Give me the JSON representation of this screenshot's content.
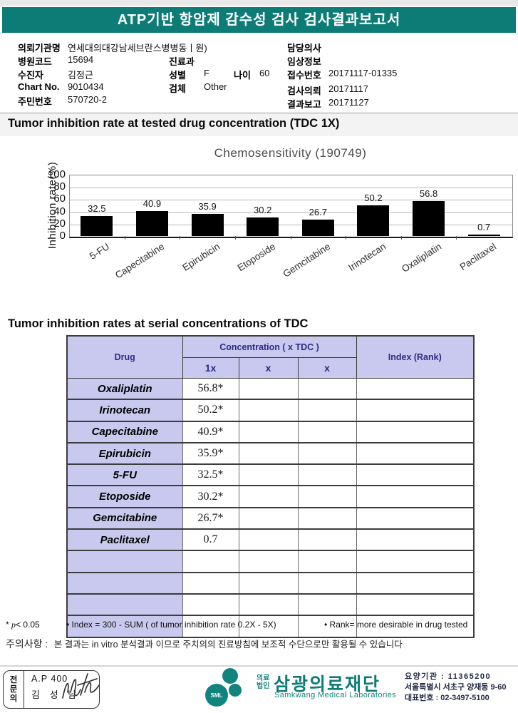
{
  "header": {
    "title": "ATP기반 항암제 감수성 검사 검사결과보고서",
    "bar_color": "#0d7c76"
  },
  "patient": {
    "org": {
      "label": "의뢰기관명",
      "value": "연세대의대강남세브란스병병동ㅣ원)"
    },
    "hospital_code": {
      "label": "병원코드",
      "value": "15694"
    },
    "patient_name": {
      "label": "수진자",
      "value": "김정근"
    },
    "chart_no": {
      "label": "Chart No.",
      "value": "9010434"
    },
    "resident_id": {
      "label": "주민번호",
      "value": "570720-2"
    },
    "dept": {
      "label": "진료과",
      "value": ""
    },
    "sex": {
      "label": "성별",
      "value": "F"
    },
    "age": {
      "label": "나이",
      "value": "60"
    },
    "specimen": {
      "label": "검체",
      "value": "Other"
    },
    "doctor": {
      "label": "담당의사",
      "value": ""
    },
    "clinical_info": {
      "label": "임상정보",
      "value": ""
    },
    "receipt_no": {
      "label": "접수번호",
      "value": "20171117-01335"
    },
    "request_date": {
      "label": "검사의뢰",
      "value": "20171117"
    },
    "report_date": {
      "label": "결과보고",
      "value": "20171127"
    }
  },
  "section1": {
    "title": "Tumor inhibition rate at tested drug concentration (TDC 1X)"
  },
  "chart_data": {
    "type": "bar",
    "title": "Chemosensitivity (190749)",
    "ylabel": "Inhibition rate(%)",
    "categories": [
      "5-FU",
      "Capecitabine",
      "Epirubicin",
      "Etoposide",
      "Gemcitabine",
      "Irinotecan",
      "Oxaliplatin",
      "Paclitaxel"
    ],
    "values": [
      32.5,
      40.9,
      35.9,
      30.2,
      26.7,
      50.2,
      56.8,
      0.7
    ],
    "ylim": [
      0,
      100
    ],
    "yticks": [
      0,
      20,
      40,
      60,
      80,
      100
    ],
    "grid": true,
    "legend": false,
    "bar_color": "#000000"
  },
  "section2": {
    "title": "Tumor inhibition rates at serial concentrations of TDC"
  },
  "table": {
    "col_drug": "Drug",
    "col_conc": "Concentration ( x TDC )",
    "sub_cols": [
      "1x",
      "x",
      "x"
    ],
    "col_index": "Index (Rank)",
    "header_bg": "#c9c9ef",
    "header_text_color": "#2b2b86",
    "rows": [
      {
        "drug": "Oxaliplatin",
        "c1": "56.8*",
        "c2": "",
        "c3": "",
        "index": ""
      },
      {
        "drug": "Irinotecan",
        "c1": "50.2*",
        "c2": "",
        "c3": "",
        "index": ""
      },
      {
        "drug": "Capecitabine",
        "c1": "40.9*",
        "c2": "",
        "c3": "",
        "index": ""
      },
      {
        "drug": "Epirubicin",
        "c1": "35.9*",
        "c2": "",
        "c3": "",
        "index": ""
      },
      {
        "drug": "5-FU",
        "c1": "32.5*",
        "c2": "",
        "c3": "",
        "index": ""
      },
      {
        "drug": "Etoposide",
        "c1": "30.2*",
        "c2": "",
        "c3": "",
        "index": ""
      },
      {
        "drug": "Gemcitabine",
        "c1": "26.7*",
        "c2": "",
        "c3": "",
        "index": ""
      },
      {
        "drug": "Paclitaxel",
        "c1": "0.7",
        "c2": "",
        "c3": "",
        "index": ""
      },
      {
        "drug": "",
        "c1": "",
        "c2": "",
        "c3": "",
        "index": ""
      },
      {
        "drug": "",
        "c1": "",
        "c2": "",
        "c3": "",
        "index": ""
      },
      {
        "drug": "",
        "c1": "",
        "c2": "",
        "c3": "",
        "index": ""
      },
      {
        "drug": "",
        "c1": "",
        "c2": "",
        "c3": "",
        "index": ""
      }
    ]
  },
  "notes": {
    "sig_star": "* ",
    "sig_p": "p",
    "sig_rest": "< 0.05",
    "index_formula": "• Index = 300 - SUM ( of tumor inhibition rate 0.2X  -  5X)",
    "rank": "• Rank= more desirable in drug tested",
    "caution_label": "주의사항 :",
    "caution_text": "본 결과는 in vitro 분석결과 이므로 주치의의 진료방침에 보조적 수단으로만 활용될 수 있습니다"
  },
  "footer": {
    "stamp": {
      "role_chars": [
        "전",
        "문",
        "의"
      ],
      "line1": "A.P 400",
      "line2": "김 성 남"
    },
    "logo": {
      "sml": "SML",
      "prefix1": "의료",
      "prefix2": "법인",
      "org": "삼광의료재단",
      "org_en": "Samkwang Medical Laboratories",
      "teal": "#12837d"
    },
    "info1": "요양기관 : 11365200",
    "info2": "서울특별시 서초구 양재동 9-60",
    "info3": "대표번호 : 02-3497-5100"
  }
}
